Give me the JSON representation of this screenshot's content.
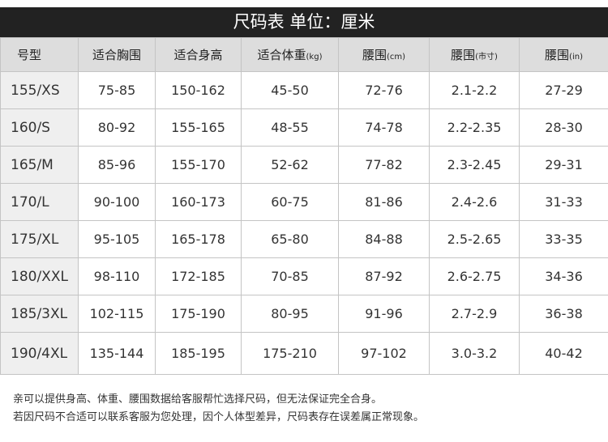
{
  "title": "尺码表 单位：厘米",
  "headers": [
    "号型",
    "适合胸围",
    "适合身高",
    "适合体重",
    "腰围",
    "腰围",
    "腰围"
  ],
  "header_units": [
    "",
    "",
    "",
    "(kg)",
    "(cm)",
    "(市寸)",
    "(in)"
  ],
  "rows": [
    [
      "155/XS",
      "75-85",
      "150-162",
      "45-50",
      "72-76",
      "2.1-2.2",
      "27-29"
    ],
    [
      "160/S",
      "80-92",
      "155-165",
      "48-55",
      "74-78",
      "2.2-2.35",
      "28-30"
    ],
    [
      "165/M",
      "85-96",
      "155-170",
      "52-62",
      "77-82",
      "2.3-2.45",
      "29-31"
    ],
    [
      "170/L",
      "90-100",
      "160-173",
      "60-75",
      "81-86",
      "2.4-2.6",
      "31-33"
    ],
    [
      "175/XL",
      "95-105",
      "165-178",
      "65-80",
      "84-88",
      "2.5-2.65",
      "33-35"
    ],
    [
      "180/XXL",
      "98-110",
      "172-185",
      "70-85",
      "87-92",
      "2.6-2.75",
      "34-36"
    ],
    [
      "185/3XL",
      "102-115",
      "175-190",
      "80-95",
      "91-96",
      "2.7-2.9",
      "36-38"
    ],
    [
      "190/4XL",
      "135-144",
      "185-195",
      "175-210",
      "97-102",
      "3.0-3.2",
      "40-42"
    ]
  ],
  "notes": [
    "亲可以提供身高、体重、腰围数据给客服帮忙选择尺码，但无法保证完全合身。",
    "若因尺码不合适可以联系客服为您处理，因个人体型差异，尺码表存在误差属正常现象。"
  ]
}
